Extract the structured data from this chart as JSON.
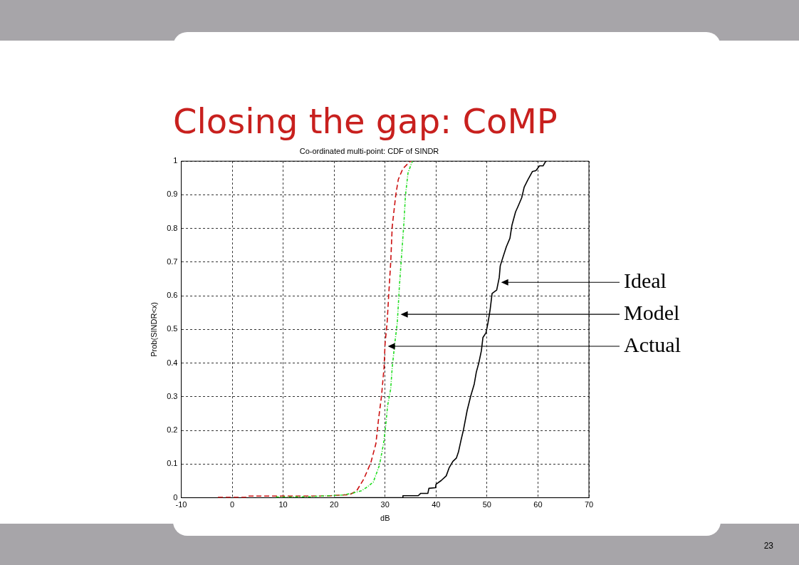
{
  "chart_data": {
    "type": "line",
    "title": "Closing the gap: CoMP",
    "subtitle": "Co-ordinated multi-point: CDF of SINDR",
    "xlabel": "dB",
    "ylabel": "Prob(SINDR<x)",
    "annotations": [
      "23"
    ],
    "xlim": [
      -10,
      70
    ],
    "xticks": [
      -10,
      0,
      10,
      20,
      30,
      40,
      50,
      60,
      70
    ],
    "ylim": [
      0,
      1
    ],
    "yticks": [
      0,
      0.1,
      0.2,
      0.3,
      0.4,
      0.5,
      0.6,
      0.7,
      0.8,
      0.9,
      1
    ],
    "grid": true,
    "marker": "none",
    "series": [
      {
        "name": "Ideal",
        "color": "#000000",
        "line_style": "solid",
        "x": [
          20,
          30,
          33.5,
          33.5,
          36.5,
          37.0,
          38.4,
          38.6,
          39.9,
          40.0,
          41.0,
          42.0,
          42.6,
          43.3,
          44.0,
          44.4,
          44.9,
          45.4,
          46.1,
          46.8,
          47.5,
          47.9,
          48.4,
          48.9,
          49.2,
          49.8,
          50.2,
          50.6,
          51.0,
          51.9,
          52.4,
          52.6,
          53.2,
          53.8,
          54.5,
          54.9,
          55.6,
          56.1,
          56.8,
          57.3,
          58.0,
          58.9,
          59.6,
          60.3,
          61.0,
          61.5,
          61.7
        ],
        "values": [
          0,
          0,
          0,
          0.006,
          0.006,
          0.013,
          0.013,
          0.028,
          0.03,
          0.04,
          0.051,
          0.065,
          0.09,
          0.108,
          0.118,
          0.136,
          0.171,
          0.203,
          0.259,
          0.302,
          0.338,
          0.373,
          0.401,
          0.437,
          0.476,
          0.49,
          0.52,
          0.557,
          0.607,
          0.617,
          0.654,
          0.689,
          0.718,
          0.746,
          0.771,
          0.81,
          0.849,
          0.866,
          0.891,
          0.923,
          0.944,
          0.969,
          0.972,
          0.986,
          0.986,
          0.999,
          1
        ]
      },
      {
        "name": "Model",
        "color": "#22dd22",
        "line_style": "dotted",
        "x": [
          8.6,
          15,
          21.6,
          23.5,
          25.4,
          26.5,
          27.7,
          28.9,
          29.7,
          30.1,
          30.5,
          31.1,
          31.4,
          31.9,
          32.4,
          32.8,
          33.3,
          33.7,
          34.0,
          34.5,
          35.2,
          35.4
        ],
        "values": [
          0.002,
          0.003,
          0.008,
          0.013,
          0.021,
          0.032,
          0.047,
          0.097,
          0.161,
          0.21,
          0.274,
          0.323,
          0.387,
          0.458,
          0.52,
          0.626,
          0.732,
          0.817,
          0.898,
          0.965,
          0.994,
          1
        ]
      },
      {
        "name": "Actual",
        "color": "#cc1111",
        "line_style": "dashed",
        "x": [
          -2.8,
          2.8,
          3.0,
          18.9,
          20,
          23.0,
          24.4,
          25.8,
          27.2,
          28.2,
          28.7,
          29.3,
          29.8,
          30.0,
          30.4,
          30.7,
          31.1,
          31.4,
          32.1,
          32.6,
          33.5,
          34.9,
          35.2
        ],
        "values": [
          0.001,
          0.001,
          0.005,
          0.005,
          0.007,
          0.009,
          0.02,
          0.055,
          0.104,
          0.161,
          0.231,
          0.302,
          0.387,
          0.458,
          0.52,
          0.599,
          0.698,
          0.805,
          0.9,
          0.946,
          0.978,
          0.999,
          1
        ]
      }
    ]
  }
}
